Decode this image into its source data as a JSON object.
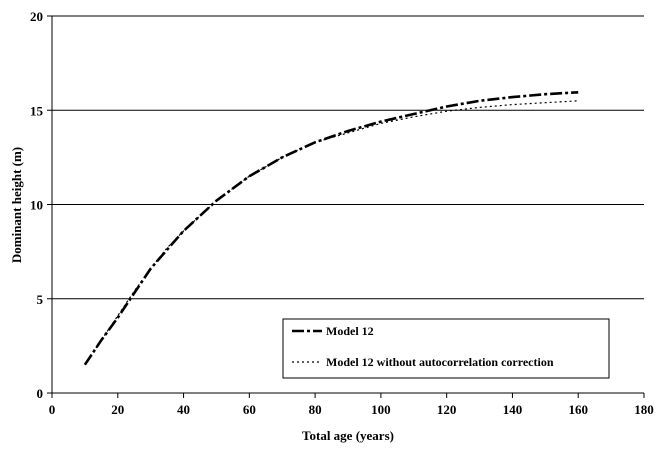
{
  "chart_data": {
    "type": "line",
    "xlabel": "Total age (years)",
    "ylabel": "Dominant height (m)",
    "xlim": [
      0,
      180
    ],
    "ylim": [
      0,
      20
    ],
    "xticks": [
      0,
      20,
      40,
      60,
      80,
      100,
      120,
      140,
      160,
      180
    ],
    "yticks": [
      0,
      5,
      10,
      15,
      20
    ],
    "grid": "horizontal",
    "legend_position": "bottom-right",
    "series": [
      {
        "name": "Model 12",
        "style": "long-dash-dot",
        "color": "#000000",
        "x": [
          10,
          15,
          20,
          25,
          30,
          35,
          40,
          45,
          50,
          60,
          70,
          80,
          90,
          100,
          110,
          120,
          130,
          140,
          150,
          160
        ],
        "y": [
          1.5,
          2.8,
          4.0,
          5.3,
          6.6,
          7.6,
          8.6,
          9.4,
          10.2,
          11.5,
          12.5,
          13.3,
          13.9,
          14.4,
          14.8,
          15.2,
          15.5,
          15.7,
          15.85,
          15.95
        ]
      },
      {
        "name": "Model 12 without autocorrelation correction",
        "style": "dotted",
        "color": "#000000",
        "x": [
          10,
          15,
          20,
          25,
          30,
          35,
          40,
          45,
          50,
          60,
          70,
          80,
          90,
          100,
          110,
          120,
          130,
          140,
          150,
          160
        ],
        "y": [
          1.5,
          2.8,
          4.1,
          5.4,
          6.6,
          7.7,
          8.6,
          9.4,
          10.2,
          11.5,
          12.5,
          13.3,
          13.8,
          14.3,
          14.65,
          14.95,
          15.15,
          15.3,
          15.4,
          15.5
        ]
      }
    ]
  }
}
